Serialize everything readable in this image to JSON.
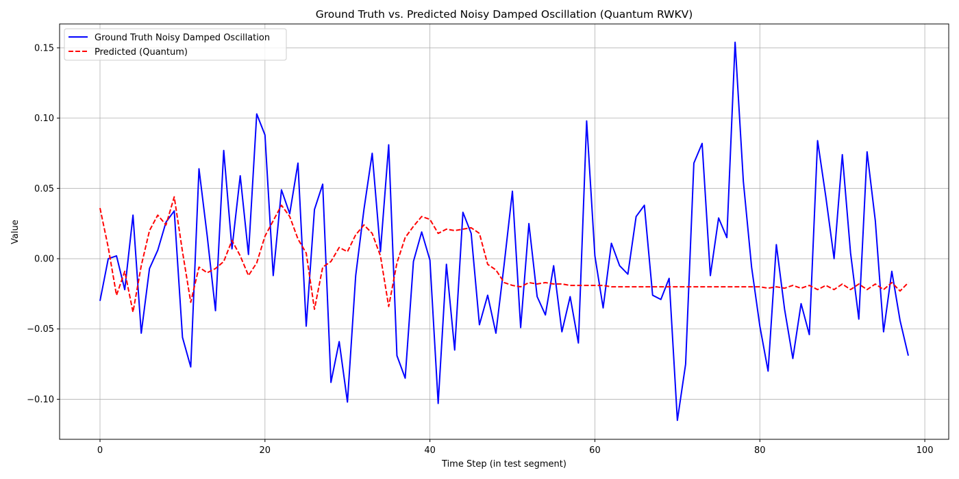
{
  "chart_data": {
    "type": "line",
    "title": "Ground Truth vs. Predicted Noisy Damped Oscillation (Quantum RWKV)",
    "xlabel": "Time Step (in test segment)",
    "ylabel": "Value",
    "xlim": [
      -4.9,
      102.9
    ],
    "ylim": [
      -0.1285,
      0.167
    ],
    "xticks": [
      0,
      20,
      40,
      60,
      80,
      100
    ],
    "xtick_labels": [
      "0",
      "20",
      "40",
      "60",
      "80",
      "100"
    ],
    "yticks": [
      -0.1,
      -0.05,
      0.0,
      0.05,
      0.1,
      0.15
    ],
    "ytick_labels": [
      "−0.10",
      "−0.05",
      "0.00",
      "0.05",
      "0.10",
      "0.15"
    ],
    "grid": true,
    "legend_position": "top-left",
    "x": [
      0,
      1,
      2,
      3,
      4,
      5,
      6,
      7,
      8,
      9,
      10,
      11,
      12,
      13,
      14,
      15,
      16,
      17,
      18,
      19,
      20,
      21,
      22,
      23,
      24,
      25,
      26,
      27,
      28,
      29,
      30,
      31,
      32,
      33,
      34,
      35,
      36,
      37,
      38,
      39,
      40,
      41,
      42,
      43,
      44,
      45,
      46,
      47,
      48,
      49,
      50,
      51,
      52,
      53,
      54,
      55,
      56,
      57,
      58,
      59,
      60,
      61,
      62,
      63,
      64,
      65,
      66,
      67,
      68,
      69,
      70,
      71,
      72,
      73,
      74,
      75,
      76,
      77,
      78,
      79,
      80,
      81,
      82,
      83,
      84,
      85,
      86,
      87,
      88,
      89,
      90,
      91,
      92,
      93,
      94,
      95,
      96,
      97,
      98
    ],
    "series": [
      {
        "name": "Ground Truth Noisy Damped Oscillation",
        "color": "#0000ff",
        "style": "solid",
        "values": [
          -0.03,
          0.0,
          0.002,
          -0.022,
          0.031,
          -0.053,
          -0.007,
          0.006,
          0.026,
          0.034,
          -0.056,
          -0.077,
          0.064,
          0.016,
          -0.037,
          0.077,
          0.007,
          0.059,
          0.003,
          0.103,
          0.088,
          -0.012,
          0.049,
          0.032,
          0.068,
          -0.048,
          0.035,
          0.053,
          -0.088,
          -0.059,
          -0.102,
          -0.012,
          0.035,
          0.075,
          0.005,
          0.081,
          -0.069,
          -0.085,
          -0.002,
          0.019,
          -0.001,
          -0.103,
          -0.004,
          -0.065,
          0.033,
          0.018,
          -0.047,
          -0.026,
          -0.053,
          -0.004,
          0.048,
          -0.049,
          0.025,
          -0.027,
          -0.04,
          -0.005,
          -0.052,
          -0.027,
          -0.06,
          0.098,
          0.002,
          -0.035,
          0.011,
          -0.005,
          -0.011,
          0.03,
          0.038,
          -0.026,
          -0.029,
          -0.014,
          -0.115,
          -0.075,
          0.068,
          0.082,
          -0.012,
          0.029,
          0.015,
          0.154,
          0.055,
          -0.006,
          -0.048,
          -0.08,
          0.01,
          -0.036,
          -0.071,
          -0.032,
          -0.054,
          0.084,
          0.044,
          0.0,
          0.074,
          0.004,
          -0.043,
          0.076,
          0.027,
          -0.052,
          -0.009,
          -0.044,
          -0.069
        ]
      },
      {
        "name": "Predicted (Quantum)",
        "color": "#ff0000",
        "style": "dashed",
        "values": [
          0.036,
          0.008,
          -0.026,
          -0.009,
          -0.038,
          -0.005,
          0.02,
          0.031,
          0.024,
          0.044,
          0.005,
          -0.031,
          -0.006,
          -0.01,
          -0.007,
          -0.002,
          0.013,
          0.002,
          -0.012,
          -0.003,
          0.016,
          0.027,
          0.038,
          0.03,
          0.014,
          0.004,
          -0.036,
          -0.006,
          -0.002,
          0.008,
          0.005,
          0.017,
          0.024,
          0.018,
          0.002,
          -0.034,
          -0.003,
          0.015,
          0.023,
          0.03,
          0.028,
          0.018,
          0.021,
          0.02,
          0.021,
          0.022,
          0.018,
          -0.004,
          -0.008,
          -0.017,
          -0.019,
          -0.02,
          -0.017,
          -0.018,
          -0.017,
          -0.018,
          -0.018,
          -0.019,
          -0.019,
          -0.019,
          -0.019,
          -0.019,
          -0.02,
          -0.02,
          -0.02,
          -0.02,
          -0.02,
          -0.02,
          -0.02,
          -0.02,
          -0.02,
          -0.02,
          -0.02,
          -0.02,
          -0.02,
          -0.02,
          -0.02,
          -0.02,
          -0.02,
          -0.02,
          -0.02,
          -0.021,
          -0.02,
          -0.021,
          -0.019,
          -0.021,
          -0.019,
          -0.022,
          -0.019,
          -0.022,
          -0.018,
          -0.022,
          -0.018,
          -0.022,
          -0.018,
          -0.022,
          -0.017,
          -0.023,
          -0.017
        ]
      }
    ]
  }
}
